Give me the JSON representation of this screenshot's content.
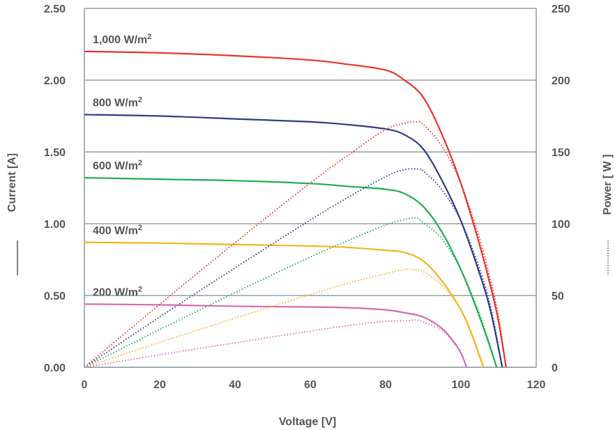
{
  "chart_data": {
    "type": "line",
    "xlabel": "Voltage [V]",
    "ylabel_left": "Current [A]",
    "ylabel_right": "Power [ W ]",
    "xlim": [
      0,
      120
    ],
    "ylim_left": [
      0,
      2.5
    ],
    "ylim_right": [
      0,
      250
    ],
    "x_ticks": [
      "0",
      "20",
      "40",
      "60",
      "80",
      "100",
      "120"
    ],
    "y_left_ticks": [
      "0.00",
      "0.50",
      "1.00",
      "1.50",
      "2.00",
      "2.50"
    ],
    "y_right_ticks": [
      "0",
      "50",
      "100",
      "150",
      "200",
      "250"
    ],
    "grid": "horizontal",
    "series": [
      {
        "name": "1,000 W/m²",
        "color": "#e8322b",
        "isc": 2.2,
        "voc": 112,
        "current": [
          [
            0,
            2.2
          ],
          [
            20,
            2.19
          ],
          [
            40,
            2.17
          ],
          [
            60,
            2.14
          ],
          [
            70,
            2.11
          ],
          [
            80,
            2.07
          ],
          [
            85,
            2.0
          ],
          [
            90,
            1.88
          ],
          [
            95,
            1.62
          ],
          [
            100,
            1.28
          ],
          [
            105,
            0.85
          ],
          [
            108,
            0.55
          ],
          [
            110,
            0.32
          ],
          [
            112,
            0.0
          ]
        ],
        "power": [
          [
            0,
            0
          ],
          [
            20,
            43.8
          ],
          [
            40,
            86.8
          ],
          [
            60,
            128.4
          ],
          [
            70,
            147.7
          ],
          [
            80,
            165.6
          ],
          [
            85,
            170
          ],
          [
            88,
            171
          ],
          [
            90,
            169.2
          ],
          [
            95,
            153.9
          ],
          [
            100,
            128
          ],
          [
            105,
            89.3
          ],
          [
            108,
            59.4
          ],
          [
            110,
            35.2
          ],
          [
            112,
            0
          ]
        ]
      },
      {
        "name": "800 W/m²",
        "color": "#2e3a8c",
        "isc": 1.76,
        "voc": 111,
        "current": [
          [
            0,
            1.76
          ],
          [
            20,
            1.75
          ],
          [
            40,
            1.73
          ],
          [
            60,
            1.71
          ],
          [
            70,
            1.69
          ],
          [
            80,
            1.66
          ],
          [
            85,
            1.62
          ],
          [
            90,
            1.52
          ],
          [
            95,
            1.3
          ],
          [
            100,
            1.02
          ],
          [
            105,
            0.65
          ],
          [
            108,
            0.38
          ],
          [
            111,
            0.0
          ]
        ],
        "power": [
          [
            0,
            0
          ],
          [
            20,
            35
          ],
          [
            40,
            69.2
          ],
          [
            60,
            102.6
          ],
          [
            70,
            118.3
          ],
          [
            80,
            132.8
          ],
          [
            85,
            137.7
          ],
          [
            89,
            138
          ],
          [
            90,
            136.8
          ],
          [
            95,
            123.5
          ],
          [
            100,
            102
          ],
          [
            105,
            68.3
          ],
          [
            108,
            41
          ],
          [
            111,
            0
          ]
        ]
      },
      {
        "name": "600 W/m²",
        "color": "#1fad4f",
        "isc": 1.32,
        "voc": 109.5,
        "current": [
          [
            0,
            1.32
          ],
          [
            20,
            1.31
          ],
          [
            40,
            1.3
          ],
          [
            60,
            1.28
          ],
          [
            70,
            1.26
          ],
          [
            80,
            1.24
          ],
          [
            85,
            1.21
          ],
          [
            90,
            1.12
          ],
          [
            95,
            0.94
          ],
          [
            100,
            0.68
          ],
          [
            104,
            0.42
          ],
          [
            107,
            0.2
          ],
          [
            109.5,
            0.0
          ]
        ],
        "power": [
          [
            0,
            0
          ],
          [
            20,
            26.2
          ],
          [
            40,
            52
          ],
          [
            60,
            76.8
          ],
          [
            70,
            88.2
          ],
          [
            80,
            99.2
          ],
          [
            85,
            102.9
          ],
          [
            88,
            104
          ],
          [
            90,
            100.8
          ],
          [
            95,
            89.3
          ],
          [
            100,
            68
          ],
          [
            104,
            43.7
          ],
          [
            107,
            21.4
          ],
          [
            109.5,
            0
          ]
        ]
      },
      {
        "name": "400 W/m²",
        "color": "#f5b21b",
        "isc": 0.87,
        "voc": 106,
        "current": [
          [
            0,
            0.87
          ],
          [
            20,
            0.865
          ],
          [
            40,
            0.855
          ],
          [
            60,
            0.845
          ],
          [
            70,
            0.835
          ],
          [
            80,
            0.815
          ],
          [
            85,
            0.8
          ],
          [
            90,
            0.74
          ],
          [
            95,
            0.6
          ],
          [
            100,
            0.4
          ],
          [
            103,
            0.22
          ],
          [
            106,
            0.0
          ]
        ],
        "power": [
          [
            0,
            0
          ],
          [
            20,
            17.3
          ],
          [
            40,
            34.2
          ],
          [
            60,
            50.7
          ],
          [
            70,
            58.5
          ],
          [
            80,
            65.2
          ],
          [
            85,
            68
          ],
          [
            88,
            68
          ],
          [
            90,
            66.6
          ],
          [
            95,
            57
          ],
          [
            100,
            40
          ],
          [
            103,
            22.7
          ],
          [
            106,
            0
          ]
        ]
      },
      {
        "name": "200 W/m²",
        "color": "#d868b0",
        "isc": 0.44,
        "voc": 101.5,
        "current": [
          [
            0,
            0.44
          ],
          [
            20,
            0.435
          ],
          [
            40,
            0.425
          ],
          [
            60,
            0.42
          ],
          [
            70,
            0.415
          ],
          [
            80,
            0.4
          ],
          [
            85,
            0.38
          ],
          [
            90,
            0.35
          ],
          [
            95,
            0.27
          ],
          [
            98,
            0.18
          ],
          [
            100,
            0.1
          ],
          [
            101.5,
            0.0
          ]
        ],
        "power": [
          [
            0,
            0
          ],
          [
            20,
            8.7
          ],
          [
            40,
            17
          ],
          [
            60,
            25.2
          ],
          [
            70,
            29
          ],
          [
            80,
            32
          ],
          [
            85,
            32.3
          ],
          [
            88,
            33
          ],
          [
            90,
            31.5
          ],
          [
            95,
            25.7
          ],
          [
            98,
            17.6
          ],
          [
            100,
            10
          ],
          [
            101.5,
            0
          ]
        ]
      }
    ]
  }
}
